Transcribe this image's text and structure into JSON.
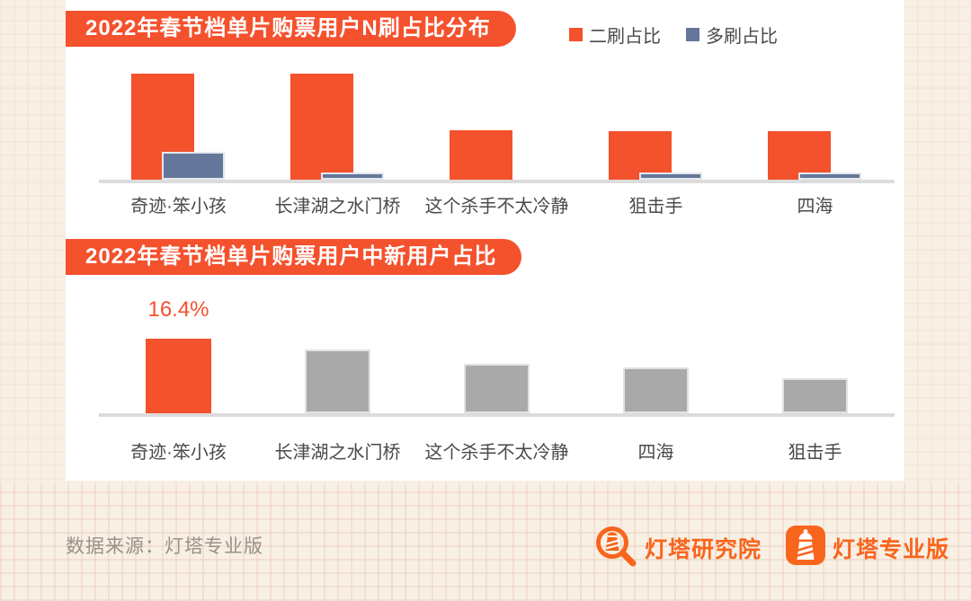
{
  "colors": {
    "accent_red": "#F4512D",
    "series_blue": "#64779B",
    "series_gray": "#A9A9A9",
    "axis_gray": "#DCDCDC",
    "label_gray": "#4A4A4A",
    "footer_gray": "#9A9189",
    "logo_orange": "#F8651D",
    "background_beige": "#F8F0E5",
    "card_white": "#FFFFFF"
  },
  "legend": {
    "items": [
      {
        "label": "二刷占比",
        "color": "#F4512D"
      },
      {
        "label": "多刷占比",
        "color": "#64779B"
      }
    ]
  },
  "chart_data": [
    {
      "type": "bar",
      "title": "2022年春节档单片购票用户N刷占比分布",
      "categories": [
        "奇迹·笨小孩",
        "长津湖之水门桥",
        "这个杀手不太冷静",
        "狙击手",
        "四海"
      ],
      "series": [
        {
          "name": "二刷占比",
          "color": "#F4512D",
          "values_rel": [
            100,
            100,
            47,
            46,
            46
          ]
        },
        {
          "name": "多刷占比",
          "color": "#64779B",
          "values_rel": [
            26,
            7,
            0,
            7,
            7
          ]
        }
      ],
      "ylim_rel": [
        0,
        100
      ],
      "grid": false,
      "numeric_axis_shown": false,
      "legend_position": "top-right"
    },
    {
      "type": "bar",
      "title": "2022年春节档单片购票用户中新用户占比",
      "categories": [
        "奇迹·笨小孩",
        "长津湖之水门桥",
        "这个杀手不太冷静",
        "四海",
        "狙击手"
      ],
      "values_pct": [
        16.4,
        14.0,
        10.9,
        10.1,
        7.7
      ],
      "shown_value_labels": [
        "16.4%",
        "",
        "",
        "",
        ""
      ],
      "bar_colors": [
        "#F4512D",
        "#A9A9A9",
        "#A9A9A9",
        "#A9A9A9",
        "#A9A9A9"
      ],
      "ylim": [
        0,
        18
      ],
      "grid": false,
      "numeric_axis_shown": false,
      "legend_position": "none"
    }
  ],
  "footer": {
    "source": "数据来源：灯塔专业版",
    "logos": [
      {
        "icon": "magnifier-lighthouse-icon",
        "label": "灯塔研究院"
      },
      {
        "icon": "lighthouse-app-icon",
        "label": "灯塔专业版"
      }
    ]
  }
}
